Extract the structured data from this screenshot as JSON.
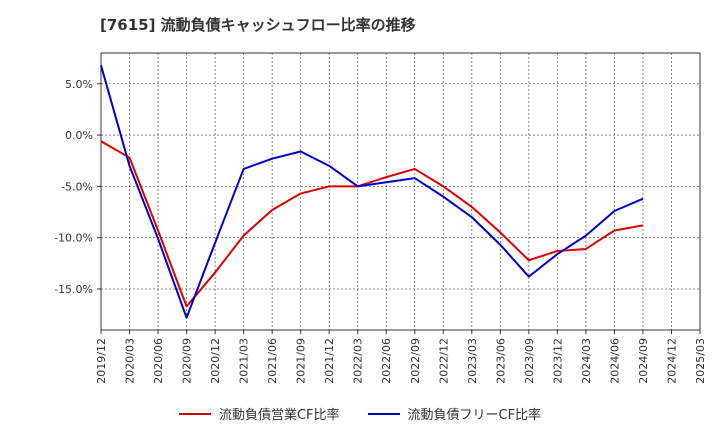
{
  "chart_data": {
    "type": "line",
    "title": "[7615]  流動負債キャッシュフロー比率の推移",
    "x": [
      "2019/12",
      "2020/03",
      "2020/06",
      "2020/09",
      "2020/12",
      "2021/03",
      "2021/06",
      "2021/09",
      "2021/12",
      "2022/03",
      "2022/06",
      "2022/09",
      "2022/12",
      "2023/03",
      "2023/06",
      "2023/09",
      "2023/12",
      "2024/03",
      "2024/06",
      "2024/09",
      "2024/12",
      "2025/03"
    ],
    "ylim": [
      -19,
      8
    ],
    "yticks": [
      5,
      0,
      -5,
      -10,
      -15
    ],
    "ytick_labels": [
      "5.0%",
      "0.0%",
      "-5.0%",
      "-10.0%",
      "-15.0%"
    ],
    "grid": true,
    "legend_position": "bottom",
    "series": [
      {
        "name": "流動負債営業CF比率",
        "color": "#dd0000",
        "values": [
          -0.6,
          -2.2,
          -9.3,
          -16.7,
          -13.4,
          -9.8,
          -7.3,
          -5.7,
          -5.0,
          -5.0,
          -4.1,
          -3.3,
          -5.0,
          -7.0,
          -9.5,
          -12.2,
          -11.3,
          -11.1,
          -9.3,
          -8.8,
          null,
          null
        ]
      },
      {
        "name": "流動負債フリーCF比率",
        "color": "#0000cc",
        "values": [
          6.8,
          -3.0,
          -10.1,
          -17.8,
          -10.5,
          -3.3,
          -2.3,
          -1.6,
          -3.0,
          -5.0,
          -4.6,
          -4.2,
          -6.0,
          -8.0,
          -10.7,
          -13.8,
          -11.6,
          -9.8,
          -7.4,
          -6.2,
          null,
          null
        ]
      }
    ]
  }
}
